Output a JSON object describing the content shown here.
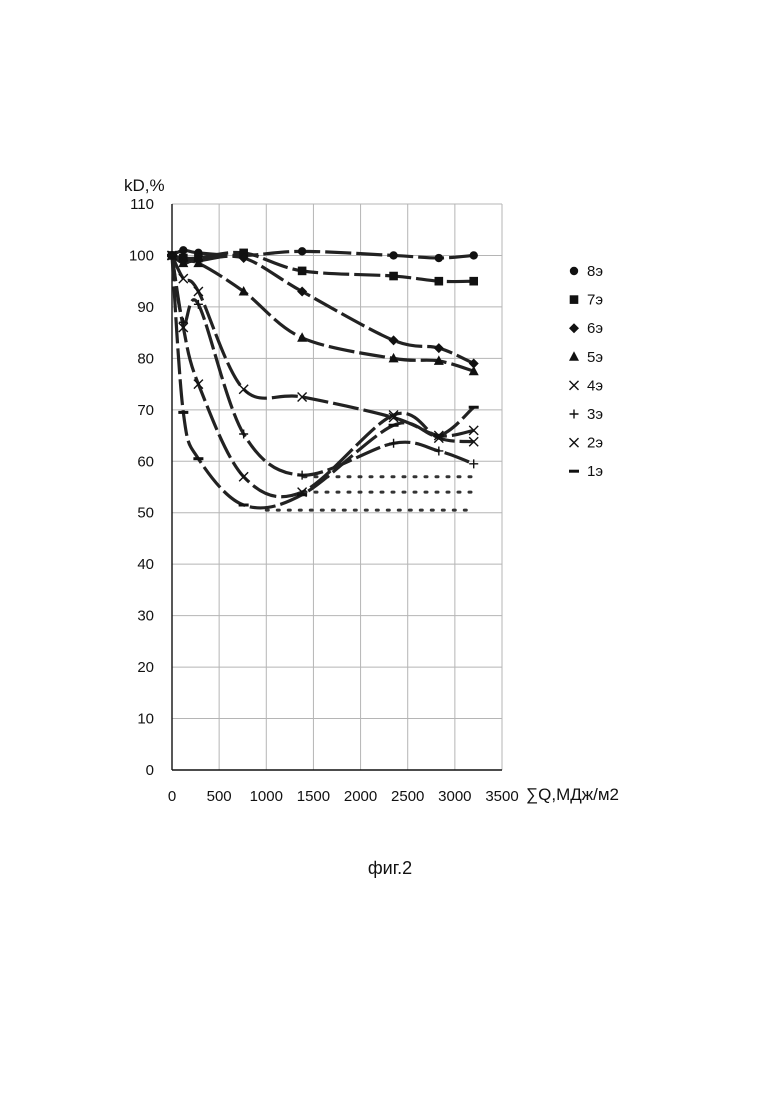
{
  "caption": "фиг.2",
  "chart_data": {
    "type": "line",
    "title": "",
    "xlabel": "∑Q,МДж/м2",
    "ylabel": "kD,%",
    "xlim": [
      0,
      3500
    ],
    "ylim": [
      0,
      110
    ],
    "x_ticks": [
      0,
      500,
      1000,
      1500,
      2000,
      2500,
      3000,
      3500
    ],
    "y_ticks": [
      0,
      10,
      20,
      30,
      40,
      50,
      60,
      70,
      80,
      90,
      100,
      110
    ],
    "grid": true,
    "legend_position": "right",
    "series": [
      {
        "name": "8э",
        "marker": "circle",
        "line": "dashed",
        "x": [
          0,
          120,
          280,
          760,
          1380,
          2350,
          2830,
          3200
        ],
        "y": [
          100,
          101,
          100.5,
          100,
          100.8,
          100,
          99.5,
          100
        ]
      },
      {
        "name": "7э",
        "marker": "square",
        "line": "dashed",
        "x": [
          0,
          120,
          280,
          760,
          1380,
          2350,
          2830,
          3200
        ],
        "y": [
          100,
          99.5,
          99.5,
          100.5,
          97,
          96,
          95,
          95
        ]
      },
      {
        "name": "6э",
        "marker": "diamond",
        "line": "dashed",
        "x": [
          0,
          120,
          280,
          760,
          1380,
          2350,
          2830,
          3200
        ],
        "y": [
          100,
          99,
          99,
          99.5,
          93,
          83.5,
          82,
          79
        ]
      },
      {
        "name": "5э",
        "marker": "triangle",
        "line": "dashed",
        "x": [
          0,
          120,
          280,
          760,
          1380,
          2350,
          2830,
          3200
        ],
        "y": [
          100,
          98.5,
          98.5,
          93,
          84,
          80,
          79.5,
          77.5
        ]
      },
      {
        "name": "4э",
        "marker": "x",
        "line": "dashed",
        "x": [
          0,
          120,
          280,
          760,
          1380,
          2350,
          2830,
          3200
        ],
        "y": [
          100,
          95.5,
          93,
          74,
          72.5,
          68.5,
          65,
          66
        ]
      },
      {
        "name": "3э",
        "marker": "plus",
        "line": "dashed",
        "x": [
          0,
          120,
          280,
          760,
          1380,
          2350,
          2830,
          3200
        ],
        "y": [
          100,
          87,
          90.5,
          65.3,
          57.3,
          63.5,
          62,
          59.5
        ]
      },
      {
        "name": "2э",
        "marker": "x",
        "line": "dashed",
        "x": [
          0,
          120,
          280,
          760,
          1380,
          2350,
          2830,
          3200
        ],
        "y": [
          100,
          86,
          75,
          57,
          54,
          69,
          64.5,
          63.8
        ]
      },
      {
        "name": "1э",
        "marker": "dash",
        "line": "dashed",
        "x": [
          0,
          120,
          280,
          760,
          1380,
          2350,
          2830,
          3200
        ],
        "y": [
          100,
          69.5,
          60.5,
          51.5,
          53.5,
          67,
          65,
          70.5
        ]
      }
    ],
    "extra_lines": [
      {
        "style": "dotted",
        "x": [
          1000,
          1500,
          2000,
          2500,
          3200
        ],
        "y": [
          50.5,
          50.5,
          50.5,
          50.5,
          50.5
        ]
      },
      {
        "style": "dotted",
        "x": [
          1400,
          3200
        ],
        "y": [
          54,
          54
        ]
      },
      {
        "style": "dotted",
        "x": [
          1400,
          3200
        ],
        "y": [
          57,
          57
        ]
      }
    ]
  }
}
